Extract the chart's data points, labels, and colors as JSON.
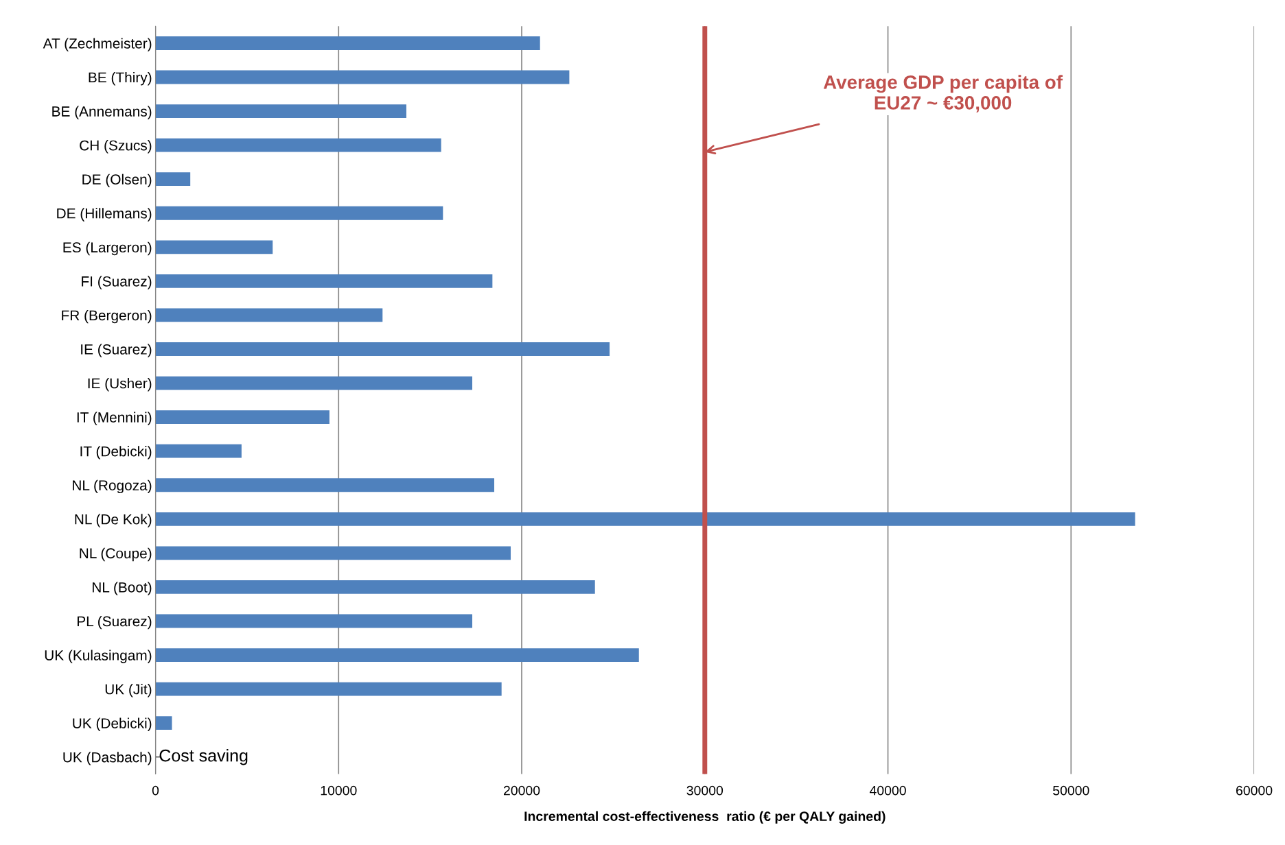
{
  "chart_data": {
    "type": "bar",
    "orientation": "horizontal",
    "xlabel": "Incremental cost-effectiveness  ratio (€ per QALY gained)",
    "categories": [
      "AT (Zechmeister)",
      "BE (Thiry)",
      "BE (Annemans)",
      "CH (Szucs)",
      "DE (Olsen)",
      "DE (Hillemans)",
      "ES (Largeron)",
      "FI (Suarez)",
      "FR (Bergeron)",
      "IE (Suarez)",
      "IE (Usher)",
      "IT (Mennini)",
      "IT (Debicki)",
      "NL (Rogoza)",
      "NL (De Kok)",
      "NL (Coupe)",
      "NL (Boot)",
      "PL (Suarez)",
      "UK (Kulasingam)",
      "UK (Jit)",
      "UK (Debicki)",
      "UK (Dasbach)"
    ],
    "values": [
      21000,
      22600,
      13700,
      15600,
      1900,
      15700,
      6400,
      18400,
      12400,
      24800,
      17300,
      9500,
      4700,
      18500,
      53500,
      19400,
      24000,
      17300,
      26400,
      18900,
      900,
      null
    ],
    "color": "#4f81bd",
    "xlim": [
      0,
      60000
    ],
    "xticks": [
      0,
      10000,
      20000,
      30000,
      40000,
      50000,
      60000
    ],
    "grid": "x",
    "ref_lines": [
      {
        "axis": "x",
        "value": 30000,
        "label": "Average GDP per capita of\nEU27 ~ €30,000",
        "color": "#c0504d"
      }
    ],
    "annotations": [
      "Cost saving"
    ]
  }
}
